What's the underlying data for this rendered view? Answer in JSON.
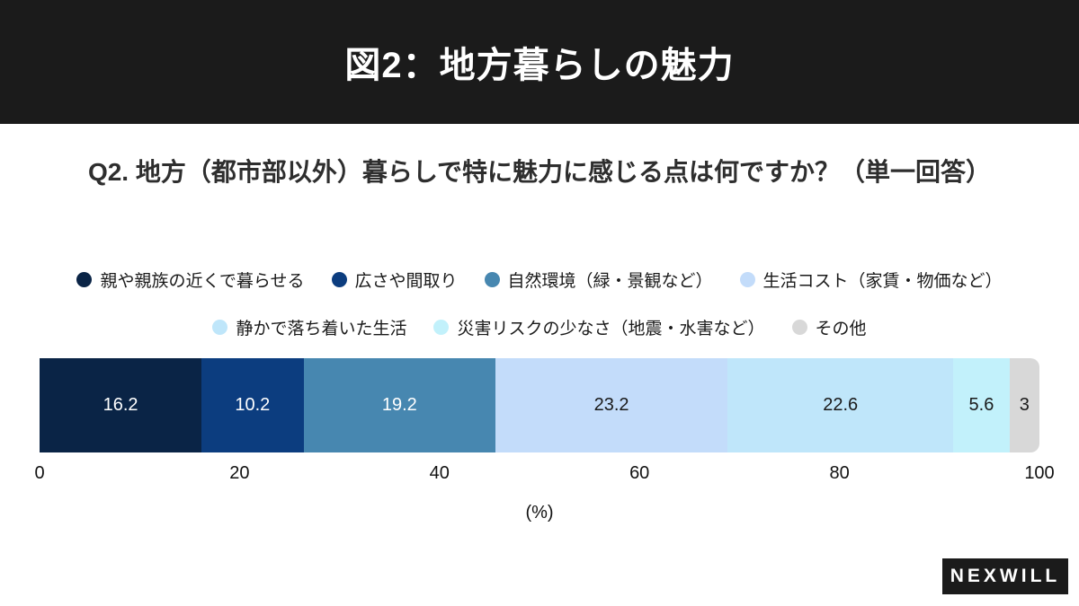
{
  "header": {
    "title": "図2：地方暮らしの魅力",
    "bg_color": "#1b1b1b"
  },
  "subtitle": "Q2. 地方（都市部以外）暮らしで特に魅力に感じる点は何ですか？（単一回答）",
  "chart_data": {
    "type": "bar",
    "stacked": true,
    "orientation": "horizontal",
    "title": "図2：地方暮らしの魅力",
    "question": "Q2. 地方（都市部以外）暮らしで特に魅力に感じる点は何ですか？（単一回答）",
    "unit": "%",
    "xlabel": "(%)",
    "xlim": [
      0,
      100
    ],
    "ticks": [
      0,
      20,
      40,
      60,
      80,
      100
    ],
    "legend_position": "top",
    "legend_rows": [
      [
        0,
        1,
        2,
        3
      ],
      [
        4,
        5,
        6
      ]
    ],
    "series": [
      {
        "name": "親や親族の近くで暮らせる",
        "value": 16.2,
        "display": "16.2",
        "color": "#0a2446",
        "label_color": "#ffffff"
      },
      {
        "name": "広さや間取り",
        "value": 10.2,
        "display": "10.2",
        "color": "#0c3d7f",
        "label_color": "#ffffff"
      },
      {
        "name": "自然環境（緑・景観など）",
        "value": 19.2,
        "display": "19.2",
        "color": "#4787b0",
        "label_color": "#ffffff"
      },
      {
        "name": "生活コスト（家賃・物価など）",
        "value": 23.2,
        "display": "23.2",
        "color": "#c3dcfa",
        "label_color": "#1a1a1a"
      },
      {
        "name": "静かで落ち着いた生活",
        "value": 22.6,
        "display": "22.6",
        "color": "#bfe6fa",
        "label_color": "#1a1a1a"
      },
      {
        "name": "災害リスクの少なさ（地震・水害など）",
        "value": 5.6,
        "display": "5.6",
        "color": "#c2f1fb",
        "label_color": "#1a1a1a"
      },
      {
        "name": "その他",
        "value": 3,
        "display": "3",
        "color": "#d8d8d8",
        "label_color": "#1a1a1a"
      }
    ]
  },
  "logo": {
    "text": "NEXWILL"
  }
}
